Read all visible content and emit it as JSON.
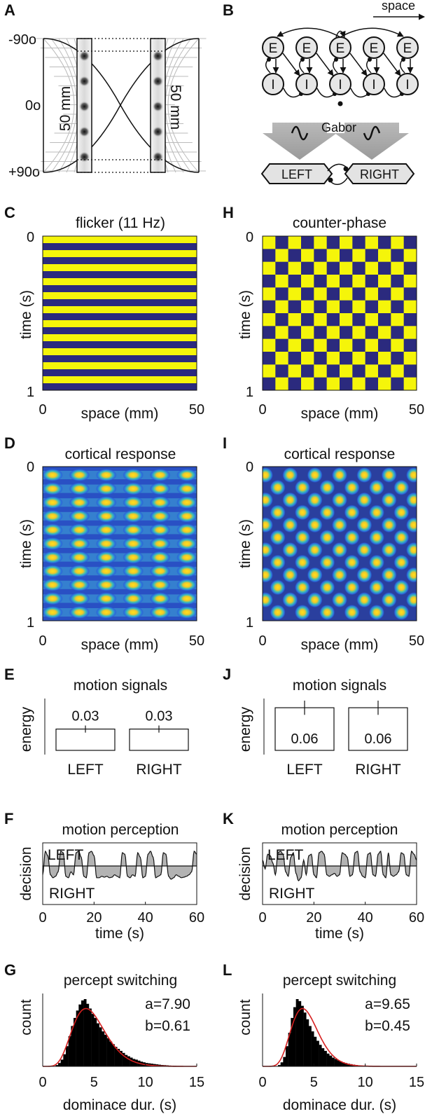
{
  "panels": {
    "A": {
      "label": "A",
      "ticks": [
        "-90o",
        "0o",
        "+90o"
      ],
      "size_label": "50 mm"
    },
    "B": {
      "label": "B",
      "space_label": "space",
      "e_label": "E",
      "i_label": "I",
      "gabor_label": "Gabor",
      "left": "LEFT",
      "right": "RIGHT"
    },
    "C": {
      "label": "C",
      "title": "flicker (11 Hz)",
      "ylabel": "time (s)",
      "xlabel": "space (mm)",
      "y0": "0",
      "y1": "1",
      "x0": "0",
      "x1": "50"
    },
    "H": {
      "label": "H",
      "title": "counter-phase",
      "ylabel": "time (s)",
      "xlabel": "space (mm)",
      "y0": "0",
      "y1": "1",
      "x0": "0",
      "x1": "50"
    },
    "D": {
      "label": "D",
      "title": "cortical response",
      "ylabel": "time (s)",
      "xlabel": "space (mm)",
      "y0": "0",
      "y1": "1",
      "x0": "0",
      "x1": "50"
    },
    "I": {
      "label": "I",
      "title": "cortical response",
      "ylabel": "time (s)",
      "xlabel": "space (mm)",
      "y0": "0",
      "y1": "1",
      "x0": "0",
      "x1": "50"
    },
    "E": {
      "label": "E",
      "title": "motion signals",
      "ylabel": "energy"
    },
    "J": {
      "label": "J",
      "title": "motion signals",
      "ylabel": "energy"
    },
    "F": {
      "label": "F",
      "title": "motion perception",
      "ylabel": "decision",
      "xlabel": "time (s)",
      "top_label": "LEFT",
      "bottom_label": "RIGHT"
    },
    "K": {
      "label": "K",
      "title": "motion perception",
      "ylabel": "decision",
      "xlabel": "time (s)",
      "top_label": "LEFT",
      "bottom_label": "RIGHT"
    },
    "G": {
      "label": "G",
      "title": "percept switching",
      "ylabel": "count",
      "xlabel": "dominace dur. (s)",
      "param_a": "a=7.90",
      "param_b": "b=0.61"
    },
    "L": {
      "label": "L",
      "title": "percept switching",
      "ylabel": "count",
      "xlabel": "dominace dur. (s)",
      "param_a": "a=9.65",
      "param_b": "b=0.45"
    }
  },
  "colors": {
    "stim_dark": "#2b2a7e",
    "stim_light": "#f5f50a",
    "bar_fill": "#ffffff",
    "fit_line": "#d62020",
    "hist": "#000000",
    "decision_fill": "#b3b3b3"
  },
  "chart_data": [
    {
      "panel": "C",
      "type": "heatmap",
      "title": "flicker (11 Hz)",
      "xlabel": "space (mm)",
      "ylabel": "time (s)",
      "xlim": [
        0,
        50
      ],
      "ylim": [
        0,
        1
      ],
      "stripe_count": 22
    },
    {
      "panel": "H",
      "type": "heatmap",
      "title": "counter-phase",
      "xlabel": "space (mm)",
      "ylabel": "time (s)",
      "xlim": [
        0,
        50
      ],
      "ylim": [
        0,
        1
      ],
      "grid_cols": 12,
      "grid_rows": 12
    },
    {
      "panel": "D",
      "type": "heatmap",
      "title": "cortical response",
      "xlabel": "space (mm)",
      "ylabel": "time (s)",
      "xlim": [
        0,
        50
      ],
      "ylim": [
        0,
        1
      ],
      "blob_cols": 6,
      "blob_rows": 11
    },
    {
      "panel": "I",
      "type": "heatmap",
      "title": "cortical response",
      "xlabel": "space (mm)",
      "ylabel": "time (s)",
      "xlim": [
        0,
        50
      ],
      "ylim": [
        0,
        1
      ],
      "blob_cols": 6,
      "blob_rows": 12
    },
    {
      "panel": "E",
      "type": "bar",
      "title": "motion signals",
      "ylabel": "energy",
      "categories": [
        "LEFT",
        "RIGHT"
      ],
      "values": [
        0.03,
        0.03
      ],
      "value_labels": [
        "0.03",
        "0.03"
      ],
      "errors": [
        0.005,
        0.005
      ],
      "ylim": [
        0,
        0.07
      ]
    },
    {
      "panel": "J",
      "type": "bar",
      "title": "motion signals",
      "ylabel": "energy",
      "categories": [
        "LEFT",
        "RIGHT"
      ],
      "values": [
        0.06,
        0.06
      ],
      "value_labels": [
        "0.06",
        "0.06"
      ],
      "errors": [
        0.01,
        0.01
      ],
      "ylim": [
        0,
        0.07
      ]
    },
    {
      "panel": "F",
      "type": "area",
      "title": "motion perception",
      "xlabel": "time (s)",
      "ylabel": "decision",
      "xlim": [
        0,
        60
      ],
      "ylim": [
        -1,
        1
      ],
      "xticks": [
        0,
        20,
        40,
        60
      ],
      "x": [
        0,
        1,
        2,
        3,
        4,
        5,
        6,
        7,
        8,
        9,
        10,
        11,
        12,
        13,
        14,
        15,
        16,
        17,
        18,
        19,
        20,
        21,
        22,
        23,
        24,
        25,
        26,
        27,
        28,
        29,
        30,
        31,
        32,
        33,
        34,
        35,
        36,
        37,
        38,
        39,
        40,
        41,
        42,
        43,
        44,
        45,
        46,
        47,
        48,
        49,
        50,
        51,
        52,
        53,
        54,
        55,
        56,
        57,
        58,
        59,
        60
      ],
      "y": [
        -0.3,
        0.5,
        0.35,
        -0.3,
        -0.4,
        -0.35,
        -0.2,
        0.5,
        0.45,
        -0.35,
        -0.4,
        -0.2,
        -0.3,
        0.45,
        0.5,
        0.3,
        -0.35,
        -0.4,
        0.45,
        0.5,
        0.35,
        -0.4,
        -0.4,
        -0.35,
        -0.38,
        -0.35,
        -0.4,
        -0.38,
        -0.3,
        -0.35,
        -0.4,
        0.45,
        0.4,
        -0.35,
        -0.4,
        -0.3,
        -0.35,
        0.45,
        0.3,
        -0.4,
        -0.35,
        0.4,
        0.5,
        0.3,
        -0.4,
        -0.35,
        -0.3,
        0.45,
        0.4,
        -0.35,
        -0.45,
        -0.4,
        -0.3,
        -0.35,
        -0.4,
        -0.38,
        -0.35,
        -0.3,
        -0.2,
        0.5,
        0.4
      ]
    },
    {
      "panel": "K",
      "type": "area",
      "title": "motion perception",
      "xlabel": "time (s)",
      "ylabel": "decision",
      "xlim": [
        0,
        60
      ],
      "ylim": [
        -1,
        1
      ],
      "xticks": [
        0,
        20,
        40,
        60
      ],
      "x": [
        0,
        1,
        2,
        3,
        4,
        5,
        6,
        7,
        8,
        9,
        10,
        11,
        12,
        13,
        14,
        15,
        16,
        17,
        18,
        19,
        20,
        21,
        22,
        23,
        24,
        25,
        26,
        27,
        28,
        29,
        30,
        31,
        32,
        33,
        34,
        35,
        36,
        37,
        38,
        39,
        40,
        41,
        42,
        43,
        44,
        45,
        46,
        47,
        48,
        49,
        50,
        51,
        52,
        53,
        54,
        55,
        56,
        57,
        58,
        59,
        60
      ],
      "y": [
        0.2,
        -0.1,
        0.4,
        0.35,
        0.1,
        -0.3,
        0.45,
        0.5,
        0.4,
        -0.2,
        -0.35,
        0.3,
        0.45,
        -0.25,
        -0.5,
        -0.4,
        0.2,
        -0.3,
        0.35,
        0.4,
        -0.3,
        -0.4,
        0.45,
        0.5,
        0.4,
        -0.3,
        -0.35,
        -0.3,
        -0.25,
        -0.35,
        -0.3,
        0.45,
        0.4,
        0.3,
        -0.35,
        -0.3,
        0.45,
        0.5,
        -0.2,
        -0.35,
        -0.4,
        0.4,
        0.45,
        -0.3,
        -0.35,
        0.4,
        0.5,
        -0.3,
        -0.4,
        0.45,
        -0.3,
        -0.35,
        -0.3,
        -0.2,
        0.45,
        0.4,
        -0.3,
        -0.35,
        0.5,
        0.4,
        0.2
      ]
    },
    {
      "panel": "G",
      "type": "bar",
      "title": "percept switching",
      "xlabel": "dominace dur. (s)",
      "ylabel": "count",
      "xlim": [
        0,
        15
      ],
      "xticks": [
        0,
        5,
        10,
        15
      ],
      "bin_width": 0.25,
      "bin_start": 0.5,
      "counts": [
        0,
        0,
        0,
        0.02,
        0.05,
        0.1,
        0.18,
        0.3,
        0.45,
        0.6,
        0.72,
        0.83,
        0.92,
        0.98,
        1.0,
        0.93,
        0.86,
        0.78,
        0.72,
        0.64,
        0.58,
        0.52,
        0.47,
        0.42,
        0.37,
        0.33,
        0.29,
        0.26,
        0.23,
        0.2,
        0.17,
        0.15,
        0.13,
        0.11,
        0.1,
        0.085,
        0.07,
        0.06,
        0.05,
        0.045,
        0.04,
        0.035,
        0.03,
        0.025,
        0.02,
        0.018,
        0.015,
        0.012,
        0.01,
        0.008,
        0.006,
        0.005,
        0.004,
        0.003,
        0.002,
        0.002
      ],
      "fit": {
        "a": 7.9,
        "b": 0.61
      }
    },
    {
      "panel": "L",
      "type": "bar",
      "title": "percept switching",
      "xlabel": "dominace dur. (s)",
      "ylabel": "count",
      "xlim": [
        0,
        15
      ],
      "xticks": [
        0,
        5,
        10,
        15
      ],
      "bin_width": 0.25,
      "bin_start": 0.5,
      "counts": [
        0,
        0,
        0,
        0,
        0.02,
        0.06,
        0.14,
        0.3,
        0.5,
        0.72,
        0.88,
        1.0,
        0.97,
        0.9,
        0.8,
        0.7,
        0.6,
        0.52,
        0.44,
        0.38,
        0.32,
        0.27,
        0.23,
        0.19,
        0.16,
        0.13,
        0.11,
        0.09,
        0.075,
        0.06,
        0.05,
        0.04,
        0.033,
        0.026,
        0.02,
        0.016,
        0.012,
        0.009,
        0.007,
        0.005,
        0.004,
        0.003,
        0.002,
        0.002,
        0.001,
        0.001
      ],
      "fit": {
        "a": 9.65,
        "b": 0.45
      }
    }
  ]
}
